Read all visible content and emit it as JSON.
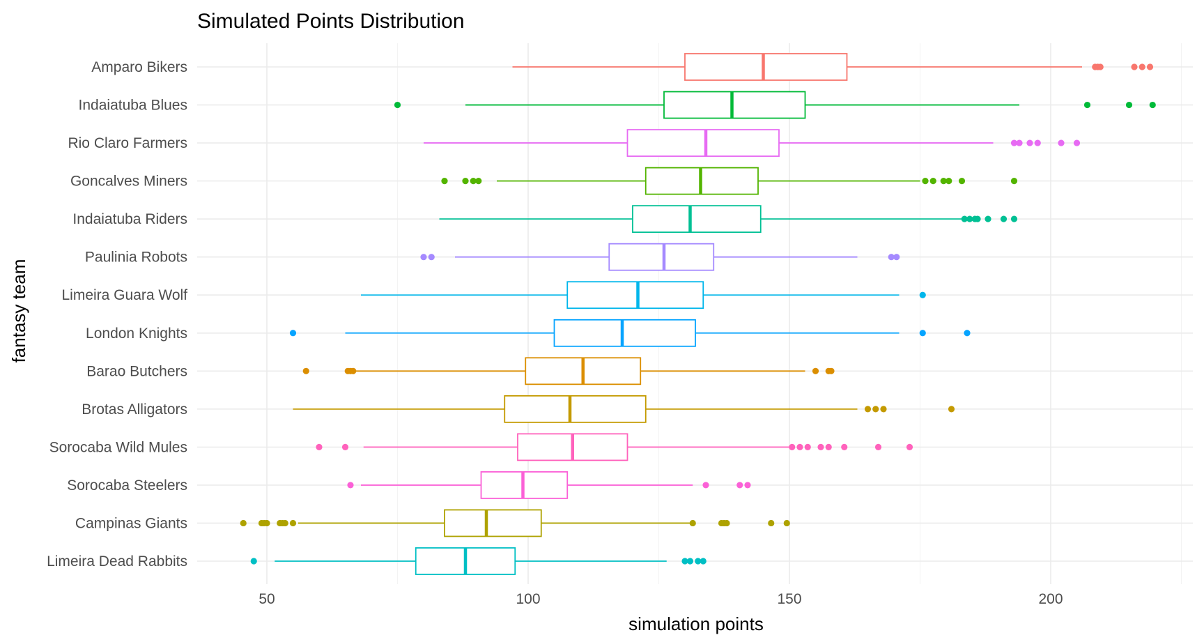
{
  "chart_data": {
    "type": "boxplot",
    "title": "Simulated Points Distribution",
    "xlabel": "simulation points",
    "ylabel": "fantasy team",
    "xlim": [
      37,
      226
    ],
    "x_ticks": [
      50,
      100,
      150,
      200
    ],
    "x_tick_labels": [
      "50",
      "100",
      "150",
      "200"
    ],
    "grid": true,
    "legend": "none",
    "series": [
      {
        "name": "Amparo Bikers",
        "color": "#F8766D",
        "whisker_low": 97,
        "q1": 130,
        "median": 145,
        "q3": 161,
        "whisker_high": 206,
        "outliers": [
          208.5,
          209,
          209.5,
          216,
          217.5,
          219
        ]
      },
      {
        "name": "Indaiatuba Blues",
        "color": "#00BA38",
        "whisker_low": 88,
        "q1": 126,
        "median": 139,
        "q3": 153,
        "whisker_high": 194,
        "outliers": [
          75,
          207,
          215,
          219.5
        ]
      },
      {
        "name": "Rio Claro Farmers",
        "color": "#E76BF3",
        "whisker_low": 80,
        "q1": 119,
        "median": 134,
        "q3": 148,
        "whisker_high": 189,
        "outliers": [
          193,
          194,
          196,
          197.5,
          202,
          205
        ]
      },
      {
        "name": "Goncalves Miners",
        "color": "#53B400",
        "whisker_low": 94,
        "q1": 122.5,
        "median": 133,
        "q3": 144,
        "whisker_high": 175,
        "outliers": [
          84,
          88,
          89.5,
          90.5,
          176,
          177.5,
          179.5,
          180.5,
          183,
          193
        ]
      },
      {
        "name": "Indaiatuba Riders",
        "color": "#00C094",
        "whisker_low": 83,
        "q1": 120,
        "median": 131,
        "q3": 144.5,
        "whisker_high": 183,
        "outliers": [
          183.5,
          184.5,
          185.5,
          186,
          188,
          191,
          193
        ]
      },
      {
        "name": "Paulinia Robots",
        "color": "#A58AFF",
        "whisker_low": 86,
        "q1": 115.5,
        "median": 126,
        "q3": 135.5,
        "whisker_high": 163,
        "outliers": [
          80,
          81.5,
          169.5,
          170.5
        ]
      },
      {
        "name": "Limeira Guara Wolf",
        "color": "#00B6EB",
        "whisker_low": 68,
        "q1": 107.5,
        "median": 121,
        "q3": 133.5,
        "whisker_high": 171,
        "outliers": [
          175.5
        ]
      },
      {
        "name": "London Knights",
        "color": "#06A4FF",
        "whisker_low": 65,
        "q1": 105,
        "median": 118,
        "q3": 132,
        "whisker_high": 171,
        "outliers": [
          55,
          175.5,
          184
        ]
      },
      {
        "name": "Barao Butchers",
        "color": "#DB8E00",
        "whisker_low": 67,
        "q1": 99.5,
        "median": 110.5,
        "q3": 121.5,
        "whisker_high": 153,
        "outliers": [
          57.5,
          65.5,
          66,
          66.5,
          155,
          157.5,
          158
        ]
      },
      {
        "name": "Brotas Alligators",
        "color": "#C49A00",
        "whisker_low": 55,
        "q1": 95.5,
        "median": 108,
        "q3": 122.5,
        "whisker_high": 163,
        "outliers": [
          165,
          166.5,
          168,
          181
        ]
      },
      {
        "name": "Sorocaba Wild Mules",
        "color": "#FF62BC",
        "whisker_low": 68.5,
        "q1": 98,
        "median": 108.5,
        "q3": 119,
        "whisker_high": 150,
        "outliers": [
          60,
          65,
          150.5,
          152,
          153.5,
          156,
          157.5,
          160.5,
          167,
          173
        ]
      },
      {
        "name": "Sorocaba Steelers",
        "color": "#FB61D7",
        "whisker_low": 68,
        "q1": 91,
        "median": 99,
        "q3": 107.5,
        "whisker_high": 131.5,
        "outliers": [
          66,
          134,
          140.5,
          142
        ]
      },
      {
        "name": "Campinas Giants",
        "color": "#AEA200",
        "whisker_low": 56,
        "q1": 84,
        "median": 92,
        "q3": 102.5,
        "whisker_high": 131,
        "outliers": [
          45.5,
          49,
          49.5,
          50,
          52.5,
          53,
          53.5,
          55,
          131.5,
          137,
          137.5,
          138,
          146.5,
          149.5
        ]
      },
      {
        "name": "Limeira Dead Rabbits",
        "color": "#00BFC4",
        "whisker_low": 51.5,
        "q1": 78.5,
        "median": 88,
        "q3": 97.5,
        "whisker_high": 126.5,
        "outliers": [
          47.5,
          130,
          131,
          132.5,
          133.5
        ]
      }
    ]
  }
}
